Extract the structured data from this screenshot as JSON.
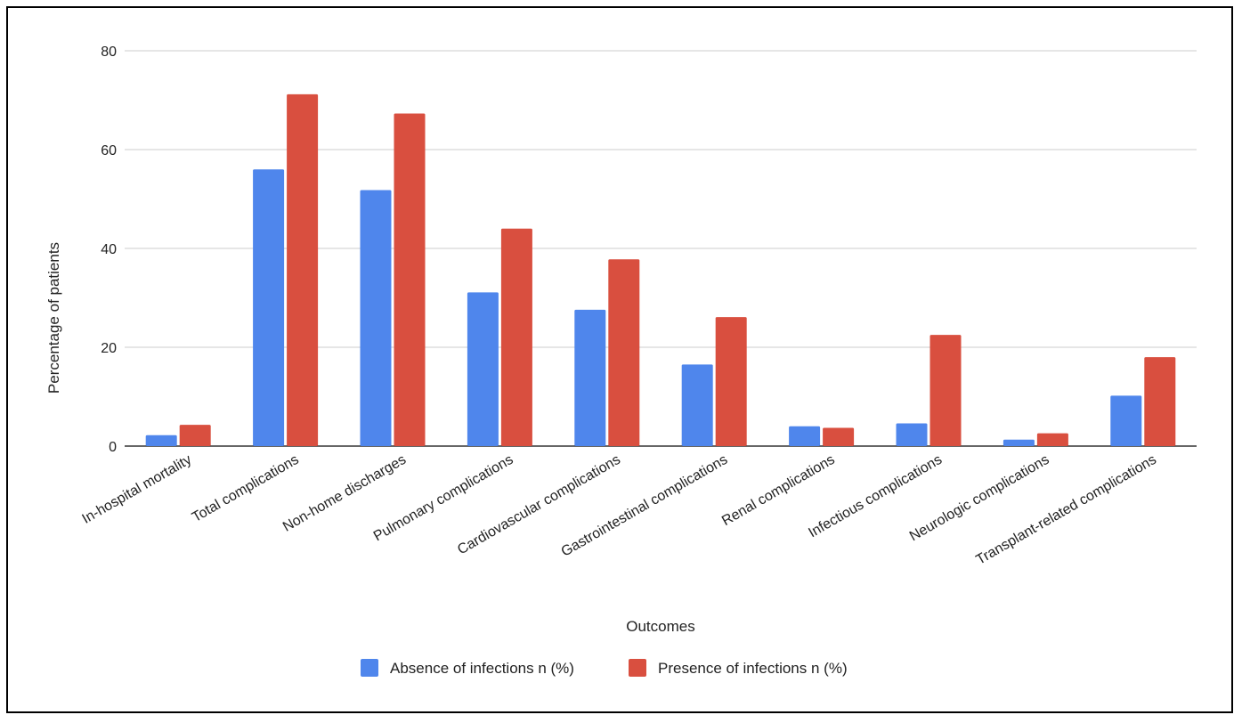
{
  "chart_data": {
    "type": "bar",
    "categories": [
      "In-hospital mortality",
      "Total complications",
      "Non-home discharges",
      "Pulmonary complications",
      "Cardiovascular complications",
      "Gastrointestinal complications",
      "Renal complications",
      "Infectious complications",
      "Neurologic complications",
      "Transplant-related complications"
    ],
    "series": [
      {
        "name": "Absence of infections n (%)",
        "color": "#4f86ec",
        "values": [
          2.2,
          56.0,
          51.8,
          31.1,
          27.6,
          16.5,
          4.0,
          4.6,
          1.3,
          10.2
        ]
      },
      {
        "name": "Presence of infections n (%)",
        "color": "#d94f3f",
        "values": [
          4.3,
          71.2,
          67.3,
          44.0,
          37.8,
          26.1,
          3.7,
          22.5,
          2.6,
          18.0
        ]
      }
    ],
    "xlabel": "Outcomes",
    "ylabel": "Percentage of patients",
    "ylim": [
      0,
      80
    ],
    "yticks": [
      0,
      20,
      40,
      60,
      80
    ],
    "grid": true,
    "legend_position": "bottom"
  }
}
